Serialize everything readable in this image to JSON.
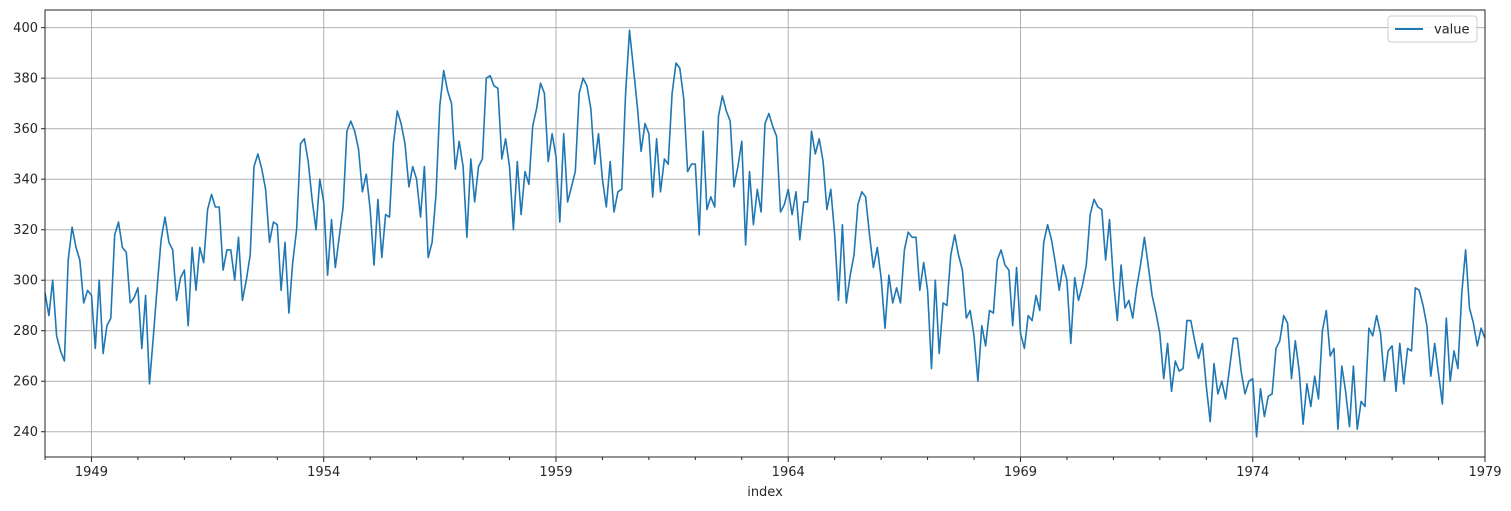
{
  "chart_data": {
    "type": "line",
    "title": "",
    "xlabel": "index",
    "ylabel": "",
    "xlim": [
      1948.0,
      1979.0
    ],
    "ylim": [
      230,
      407
    ],
    "grid": true,
    "legend": {
      "placement": "top-right",
      "entries": [
        "value"
      ]
    },
    "x_ticks": [
      {
        "value": 1949,
        "label": "1949"
      },
      {
        "value": 1954,
        "label": "1954"
      },
      {
        "value": 1959,
        "label": "1959"
      },
      {
        "value": 1964,
        "label": "1964"
      },
      {
        "value": 1969,
        "label": "1969"
      },
      {
        "value": 1974,
        "label": "1974"
      },
      {
        "value": 1979,
        "label": "1979"
      }
    ],
    "y_ticks": [
      {
        "value": 240,
        "label": "240"
      },
      {
        "value": 260,
        "label": "260"
      },
      {
        "value": 280,
        "label": "280"
      },
      {
        "value": 300,
        "label": "300"
      },
      {
        "value": 320,
        "label": "320"
      },
      {
        "value": 340,
        "label": "340"
      },
      {
        "value": 360,
        "label": "360"
      },
      {
        "value": 380,
        "label": "380"
      },
      {
        "value": 400,
        "label": "400"
      }
    ],
    "series": [
      {
        "name": "value",
        "color": "#1f77b4",
        "x": [
          1948.0,
          1949.0,
          1950.0,
          1951.0,
          1952.0,
          1953.0,
          1954.0,
          1955.0,
          1956.0,
          1957.0,
          1958.0,
          1959.0,
          1960.0,
          1961.0,
          1962.0,
          1963.0,
          1964.0,
          1965.0,
          1966.0,
          1967.0,
          1968.0,
          1969.0,
          1970.0,
          1971.0,
          1972.0,
          1973.0,
          1974.0,
          1975.0,
          1976.0,
          1977.0,
          1978.0,
          1979.0
        ],
        "values": [
          295,
          273,
          288,
          300,
          310,
          318,
          318,
          325,
          330,
          348,
          352,
          345,
          355,
          358,
          355,
          345,
          330,
          320,
          305,
          298,
          290,
          288,
          310,
          305,
          288,
          268,
          255,
          258,
          262,
          265,
          268,
          278
        ],
        "monthly_values": [
          295,
          286,
          300,
          278,
          272,
          268,
          308,
          321,
          313,
          308,
          291,
          296,
          294,
          273,
          300,
          271,
          282,
          285,
          318,
          323,
          313,
          311,
          291,
          293,
          297,
          273,
          294,
          259,
          278,
          298,
          316,
          325,
          315,
          312,
          292,
          301,
          304,
          282,
          313,
          296,
          313,
          307,
          328,
          334,
          329,
          329,
          304,
          312,
          312,
          300,
          317,
          292,
          300,
          310,
          345,
          350,
          344,
          336,
          315,
          323,
          322,
          296,
          315,
          287,
          307,
          320,
          354,
          356,
          347,
          332,
          320,
          340,
          331,
          302,
          324,
          305,
          317,
          329,
          359,
          363,
          359,
          352,
          335,
          342,
          328,
          306,
          332,
          309,
          326,
          325,
          354,
          367,
          362,
          354,
          337,
          345,
          340,
          325,
          345,
          309,
          315,
          334,
          369,
          383,
          375,
          370,
          344,
          355,
          345,
          317,
          348,
          331,
          345,
          348,
          380,
          381,
          377,
          376,
          348,
          356,
          345,
          320,
          347,
          326,
          343,
          338,
          361,
          368,
          378,
          374,
          347,
          358,
          349,
          323,
          358,
          331,
          337,
          343,
          374,
          380,
          377,
          368,
          346,
          358,
          340,
          329,
          347,
          327,
          335,
          336,
          374,
          399,
          384,
          369,
          351,
          362,
          358,
          333,
          356,
          335,
          348,
          346,
          374,
          386,
          384,
          372,
          343,
          346,
          346,
          318,
          359,
          328,
          333,
          329,
          365,
          373,
          367,
          363,
          337,
          345,
          355,
          314,
          343,
          322,
          336,
          327,
          362,
          366,
          361,
          357,
          327,
          330,
          336,
          326,
          335,
          316,
          331,
          331,
          359,
          350,
          356,
          347,
          328,
          336,
          318,
          292,
          322,
          291,
          302,
          310,
          330,
          335,
          333,
          318,
          305,
          313,
          301,
          281,
          302,
          291,
          297,
          291,
          312,
          319,
          317,
          317,
          296,
          307,
          296,
          265,
          300,
          271,
          291,
          290,
          310,
          318,
          310,
          304,
          285,
          288,
          278,
          260,
          282,
          274,
          288,
          287,
          308,
          312,
          306,
          304,
          282,
          305,
          279,
          273,
          286,
          284,
          294,
          288,
          315,
          322,
          316,
          307,
          296,
          306,
          300,
          275,
          301,
          292,
          298,
          306,
          326,
          332,
          329,
          328,
          308,
          324,
          300,
          284,
          306,
          289,
          292,
          285,
          297,
          306,
          317,
          306,
          294,
          287,
          279,
          261,
          275,
          256,
          268,
          264,
          265,
          284,
          284,
          276,
          269,
          275,
          258,
          244,
          267,
          255,
          260,
          253,
          265,
          277,
          277,
          264,
          255,
          260,
          261,
          238,
          257,
          246,
          254,
          255,
          273,
          276,
          286,
          283,
          261,
          276,
          264,
          243,
          259,
          250,
          262,
          253,
          280,
          288,
          270,
          273,
          241,
          266,
          256,
          242,
          266,
          241,
          252,
          250,
          281,
          278,
          286,
          279,
          260,
          272,
          274,
          256,
          275,
          259,
          273,
          272,
          297,
          296,
          290,
          282,
          262,
          275,
          263,
          251,
          285,
          260,
          272,
          265,
          295,
          312,
          289,
          283,
          274,
          281,
          277
        ]
      }
    ]
  }
}
